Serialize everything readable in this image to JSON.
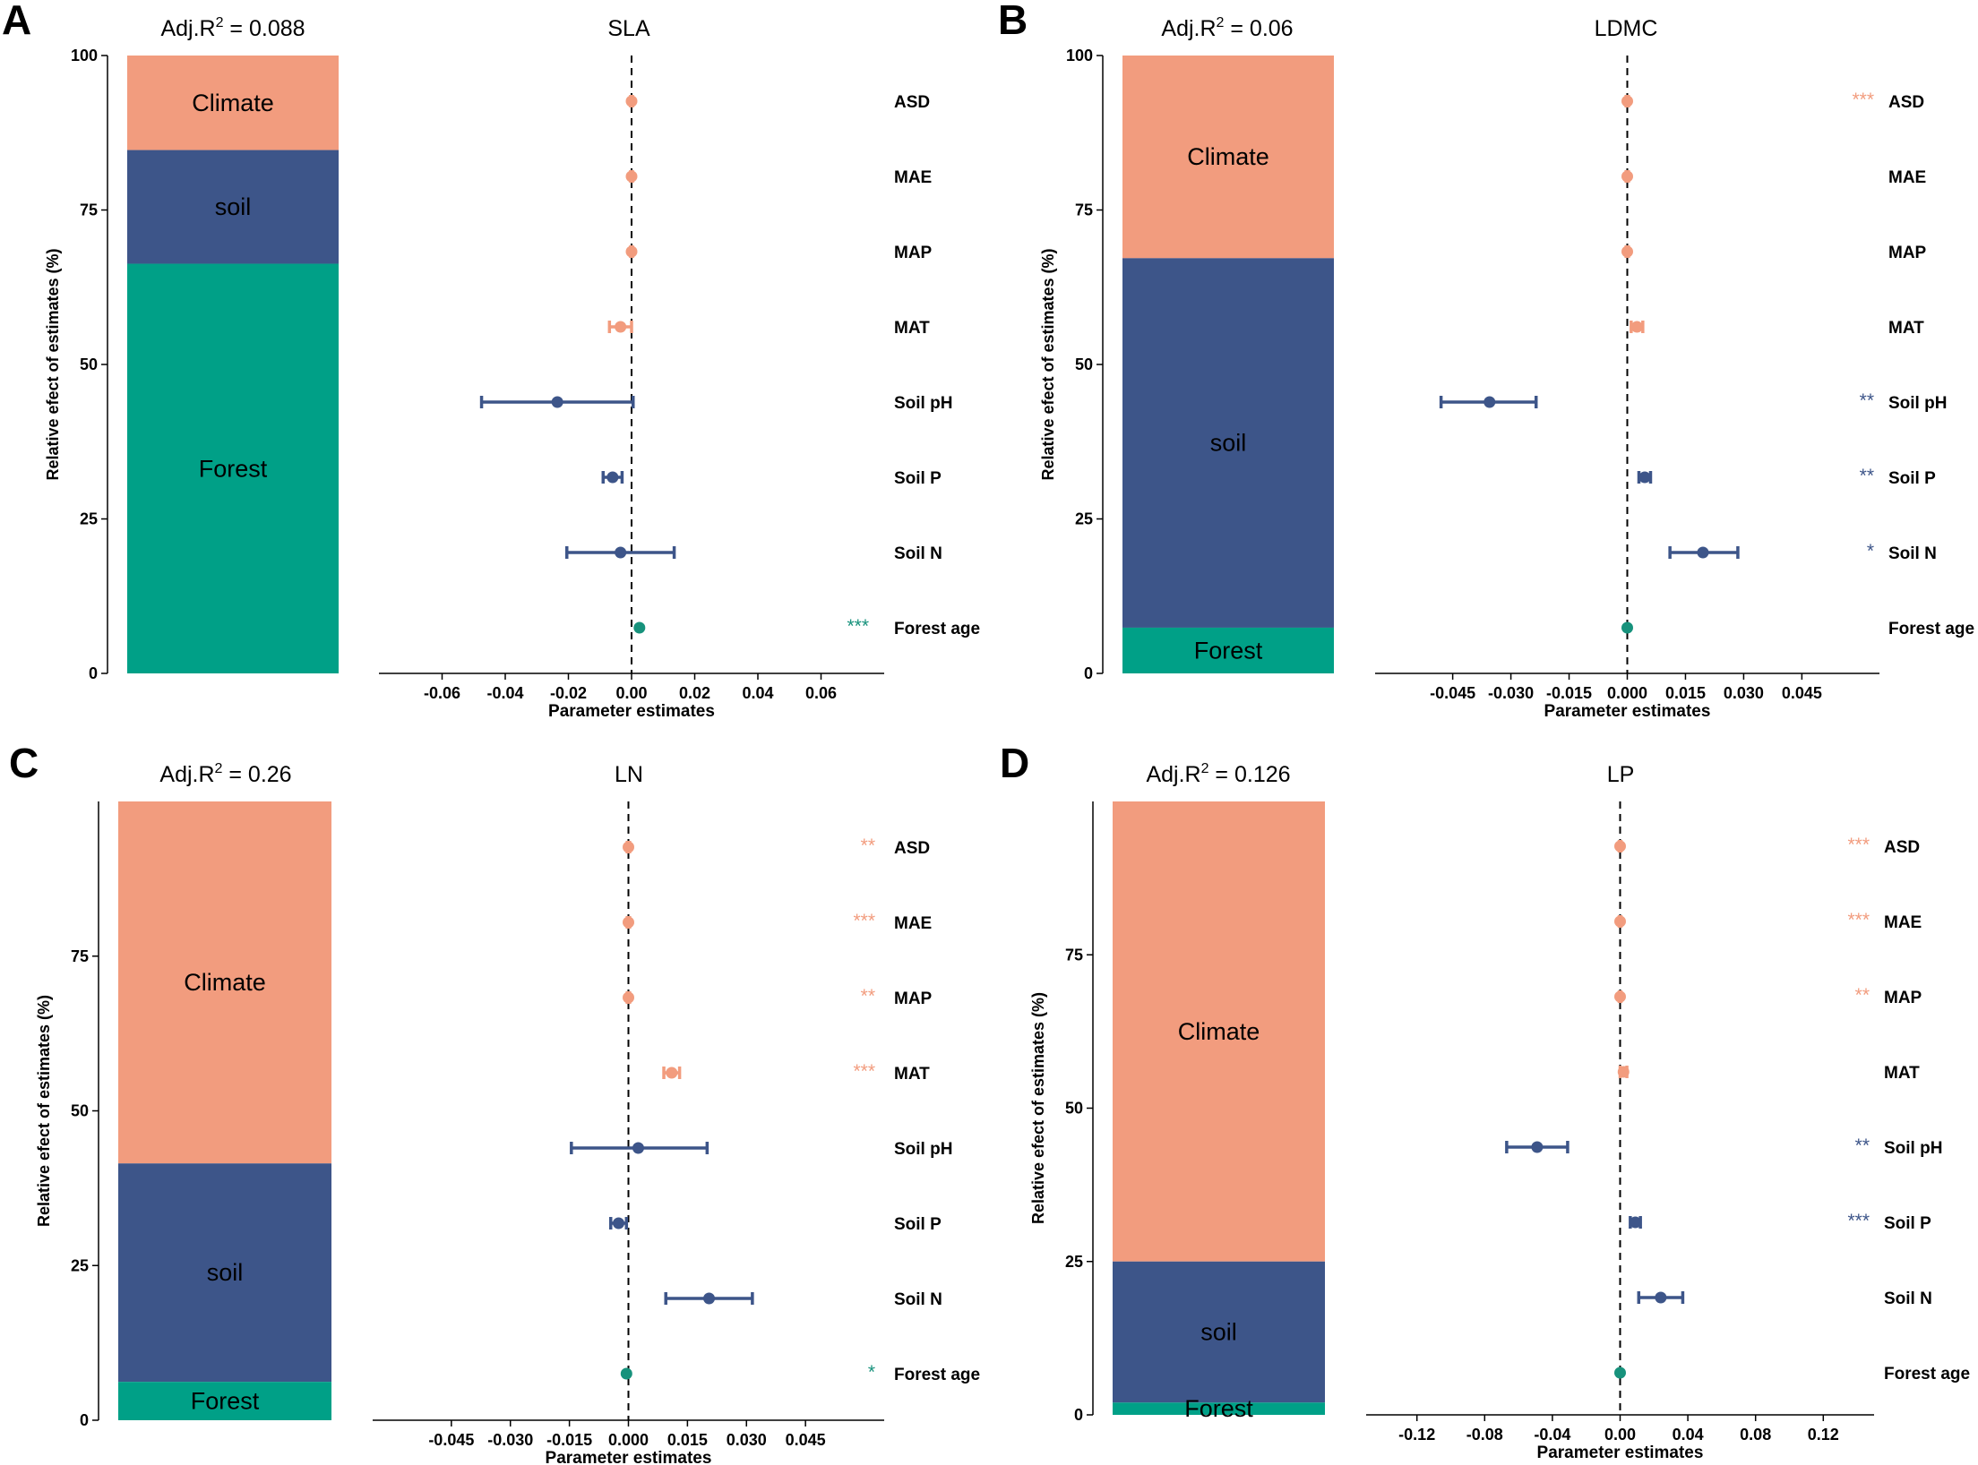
{
  "colors": {
    "climate": "#f29c7e",
    "soil": "#3d5589",
    "forest": "#00a087",
    "forest_point": "#17927c"
  },
  "chart_data": [
    {
      "type": "forest-plot",
      "panel": "A",
      "adjr2_prefix": "Adj.R",
      "adjr2_sup": "2",
      "adjr2_eq": " = 0.088",
      "title": "SLA",
      "ylabel": "Relative efect of estimates (%)",
      "xlabel": "Parameter estimates",
      "stack": [
        {
          "name": "Climate",
          "group": "climate",
          "value": 15.3
        },
        {
          "name": "soil",
          "group": "soil",
          "value": 18.4
        },
        {
          "name": "Forest",
          "group": "forest",
          "value": 66.3
        }
      ],
      "y_ticks": [
        "0",
        "25",
        "50",
        "75",
        "100"
      ],
      "y_tick_values": [
        0,
        25,
        50,
        75,
        100
      ],
      "stack_top_value": 100,
      "xlim": [
        -0.08,
        0.08
      ],
      "x_ticks": [
        "-0.06",
        "-0.04",
        "-0.02",
        "0.00",
        "0.02",
        "0.04",
        "0.06"
      ],
      "x_tick_values": [
        -0.06,
        -0.04,
        -0.02,
        0,
        0.02,
        0.04,
        0.06
      ],
      "predictors": [
        {
          "label": "ASD",
          "group": "climate",
          "estimate": 0.0,
          "low": -0.0003,
          "high": 0.0003,
          "stars": ""
        },
        {
          "label": "MAE",
          "group": "climate",
          "estimate": 0.0,
          "low": -0.0003,
          "high": 0.0003,
          "stars": ""
        },
        {
          "label": "MAP",
          "group": "climate",
          "estimate": 0.0,
          "low": -0.0003,
          "high": 0.0003,
          "stars": ""
        },
        {
          "label": "MAT",
          "group": "climate",
          "estimate": -0.0035,
          "low": -0.007,
          "high": 0.0,
          "stars": ""
        },
        {
          "label": "Soil pH",
          "group": "soil",
          "estimate": -0.0235,
          "low": -0.0475,
          "high": 0.0005,
          "stars": ""
        },
        {
          "label": "Soil P",
          "group": "soil",
          "estimate": -0.006,
          "low": -0.009,
          "high": -0.003,
          "stars": ""
        },
        {
          "label": "Soil N",
          "group": "soil",
          "estimate": -0.0035,
          "low": -0.0205,
          "high": 0.0135,
          "stars": ""
        },
        {
          "label": "Forest age",
          "group": "forest",
          "estimate": 0.0025,
          "low": 0.0025,
          "high": 0.0025,
          "stars": "***"
        }
      ]
    },
    {
      "type": "forest-plot",
      "panel": "B",
      "adjr2_prefix": "Adj.R",
      "adjr2_sup": "2",
      "adjr2_eq": " = 0.06",
      "title": "LDMC",
      "ylabel": "Relative efect of estimates (%)",
      "xlabel": "Parameter estimates",
      "stack": [
        {
          "name": "Climate",
          "group": "climate",
          "value": 32.8
        },
        {
          "name": "soil",
          "group": "soil",
          "value": 59.8
        },
        {
          "name": "Forest",
          "group": "forest",
          "value": 7.4
        }
      ],
      "y_ticks": [
        "0",
        "25",
        "50",
        "75",
        "100"
      ],
      "y_tick_values": [
        0,
        25,
        50,
        75,
        100
      ],
      "stack_top_value": 100,
      "xlim": [
        -0.065,
        0.065
      ],
      "x_ticks": [
        "-0.045",
        "-0.030",
        "-0.015",
        "0.000",
        "0.015",
        "0.030",
        "0.045"
      ],
      "x_tick_values": [
        -0.045,
        -0.03,
        -0.015,
        0,
        0.015,
        0.03,
        0.045
      ],
      "predictors": [
        {
          "label": "ASD",
          "group": "climate",
          "estimate": 0.0,
          "low": -0.0003,
          "high": 0.0003,
          "stars": "***"
        },
        {
          "label": "MAE",
          "group": "climate",
          "estimate": 0.0,
          "low": -0.0003,
          "high": 0.0003,
          "stars": ""
        },
        {
          "label": "MAP",
          "group": "climate",
          "estimate": 0.0,
          "low": -0.0003,
          "high": 0.0003,
          "stars": ""
        },
        {
          "label": "MAT",
          "group": "climate",
          "estimate": 0.0025,
          "low": 0.001,
          "high": 0.004,
          "stars": ""
        },
        {
          "label": "Soil pH",
          "group": "soil",
          "estimate": -0.0355,
          "low": -0.048,
          "high": -0.0235,
          "stars": "**"
        },
        {
          "label": "Soil P",
          "group": "soil",
          "estimate": 0.0045,
          "low": 0.003,
          "high": 0.006,
          "stars": "**"
        },
        {
          "label": "Soil N",
          "group": "soil",
          "estimate": 0.0195,
          "low": 0.011,
          "high": 0.0285,
          "stars": "*"
        },
        {
          "label": "Forest age",
          "group": "forest",
          "estimate": 0.0,
          "low": 0.0,
          "high": 0.0,
          "stars": ""
        }
      ]
    },
    {
      "type": "forest-plot",
      "panel": "C",
      "adjr2_prefix": "Adj.R",
      "adjr2_sup": "2",
      "adjr2_eq": " = 0.26",
      "title": "LN",
      "ylabel": "Relative efect of estimates (%)",
      "xlabel": "Parameter estimates",
      "stack": [
        {
          "name": "Climate",
          "group": "climate",
          "value": 58.5
        },
        {
          "name": "soil",
          "group": "soil",
          "value": 35.3
        },
        {
          "name": "Forest",
          "group": "forest",
          "value": 6.2
        }
      ],
      "y_ticks": [
        "0",
        "25",
        "50",
        "75"
      ],
      "y_tick_values": [
        0,
        25,
        50,
        75
      ],
      "stack_top_value": 100,
      "xlim": [
        -0.065,
        0.065
      ],
      "x_ticks": [
        "-0.045",
        "-0.030",
        "-0.015",
        "0.000",
        "0.015",
        "0.030",
        "0.045"
      ],
      "x_tick_values": [
        -0.045,
        -0.03,
        -0.015,
        0,
        0.015,
        0.03,
        0.045
      ],
      "predictors": [
        {
          "label": "ASD",
          "group": "climate",
          "estimate": 0.0,
          "low": -0.0003,
          "high": 0.0003,
          "stars": "**"
        },
        {
          "label": "MAE",
          "group": "climate",
          "estimate": 0.0,
          "low": -0.0003,
          "high": 0.0003,
          "stars": "***"
        },
        {
          "label": "MAP",
          "group": "climate",
          "estimate": 0.0,
          "low": -0.0003,
          "high": 0.0003,
          "stars": "**"
        },
        {
          "label": "MAT",
          "group": "climate",
          "estimate": 0.011,
          "low": 0.009,
          "high": 0.013,
          "stars": "***"
        },
        {
          "label": "Soil pH",
          "group": "soil",
          "estimate": 0.0025,
          "low": -0.0145,
          "high": 0.02,
          "stars": ""
        },
        {
          "label": "Soil P",
          "group": "soil",
          "estimate": -0.0025,
          "low": -0.0045,
          "high": -0.0005,
          "stars": ""
        },
        {
          "label": "Soil N",
          "group": "soil",
          "estimate": 0.0205,
          "low": 0.0095,
          "high": 0.0315,
          "stars": ""
        },
        {
          "label": "Forest age",
          "group": "forest",
          "estimate": -0.0005,
          "low": -0.0005,
          "high": -0.0005,
          "stars": "*"
        }
      ]
    },
    {
      "type": "forest-plot",
      "panel": "D",
      "adjr2_prefix": "Adj.R",
      "adjr2_sup": "2",
      "adjr2_eq": " = 0.126",
      "title": "LP",
      "ylabel": "Relative efect of estimates (%)",
      "xlabel": "Parameter estimates",
      "stack": [
        {
          "name": "Climate",
          "group": "climate",
          "value": 75.0
        },
        {
          "name": "soil",
          "group": "soil",
          "value": 23.0
        },
        {
          "name": "Forest",
          "group": "forest",
          "value": 2.0
        }
      ],
      "y_ticks": [
        "0",
        "25",
        "50",
        "75"
      ],
      "y_tick_values": [
        0,
        25,
        50,
        75
      ],
      "stack_top_value": 100,
      "xlim": [
        -0.15,
        0.15
      ],
      "x_ticks": [
        "-0.12",
        "-0.08",
        "-0.04",
        "0.00",
        "0.04",
        "0.08",
        "0.12"
      ],
      "x_tick_values": [
        -0.12,
        -0.08,
        -0.04,
        0,
        0.04,
        0.08,
        0.12
      ],
      "predictors": [
        {
          "label": "ASD",
          "group": "climate",
          "estimate": 0.0,
          "low": -0.0005,
          "high": 0.0005,
          "stars": "***"
        },
        {
          "label": "MAE",
          "group": "climate",
          "estimate": 0.0,
          "low": -0.0005,
          "high": 0.0005,
          "stars": "***"
        },
        {
          "label": "MAP",
          "group": "climate",
          "estimate": 0.0,
          "low": -0.0005,
          "high": 0.0005,
          "stars": "**"
        },
        {
          "label": "MAT",
          "group": "climate",
          "estimate": 0.002,
          "low": 0.0,
          "high": 0.004,
          "stars": ""
        },
        {
          "label": "Soil pH",
          "group": "soil",
          "estimate": -0.049,
          "low": -0.067,
          "high": -0.031,
          "stars": "**"
        },
        {
          "label": "Soil P",
          "group": "soil",
          "estimate": 0.009,
          "low": 0.006,
          "high": 0.012,
          "stars": "***"
        },
        {
          "label": "Soil N",
          "group": "soil",
          "estimate": 0.024,
          "low": 0.011,
          "high": 0.037,
          "stars": ""
        },
        {
          "label": "Forest age",
          "group": "forest",
          "estimate": 0.0,
          "low": 0.0,
          "high": 0.0,
          "stars": ""
        }
      ]
    }
  ]
}
